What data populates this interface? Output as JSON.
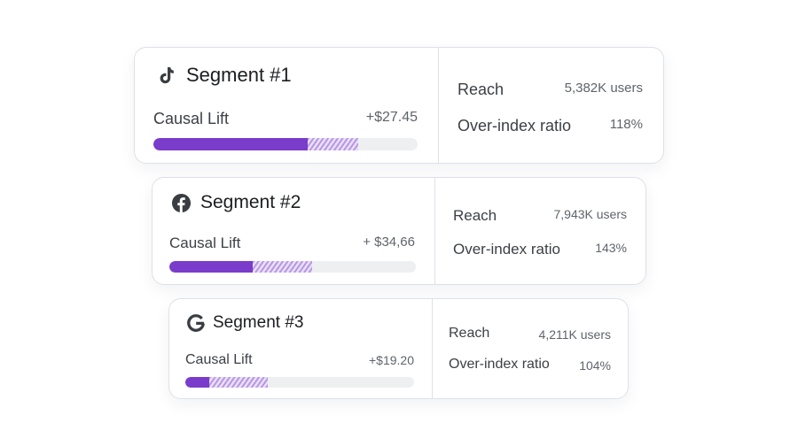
{
  "segments": [
    {
      "title": "Segment #1",
      "platform_icon": "tiktok-icon",
      "lift_label": "Causal Lift",
      "lift_value": "+$27.45",
      "lift_solid_fraction": 0.58,
      "lift_hatched_fraction": 0.19,
      "reach_label": "Reach",
      "reach_value": "5,382K users",
      "ratio_label": "Over-index ratio",
      "ratio_value": "118%"
    },
    {
      "title": "Segment #2",
      "platform_icon": "facebook-icon",
      "lift_label": "Causal Lift",
      "lift_value": "+ $34,66",
      "lift_solid_fraction": 0.34,
      "lift_hatched_fraction": 0.24,
      "reach_label": "Reach",
      "reach_value": "7,943K users",
      "ratio_label": "Over-index ratio",
      "ratio_value": "143%"
    },
    {
      "title": "Segment #3",
      "platform_icon": "google-icon",
      "lift_label": "Causal Lift",
      "lift_value": "+$19.20",
      "lift_solid_fraction": 0.1,
      "lift_hatched_fraction": 0.26,
      "reach_label": "Reach",
      "reach_value": "4,211K users",
      "ratio_label": "Over-index ratio",
      "ratio_value": "104%"
    }
  ],
  "colors": {
    "accent": "#7a3ccb",
    "accent_hatch": "#b897e4",
    "track": "#eeeff1",
    "border": "#dde1e8",
    "icon": "#3a3d42"
  }
}
